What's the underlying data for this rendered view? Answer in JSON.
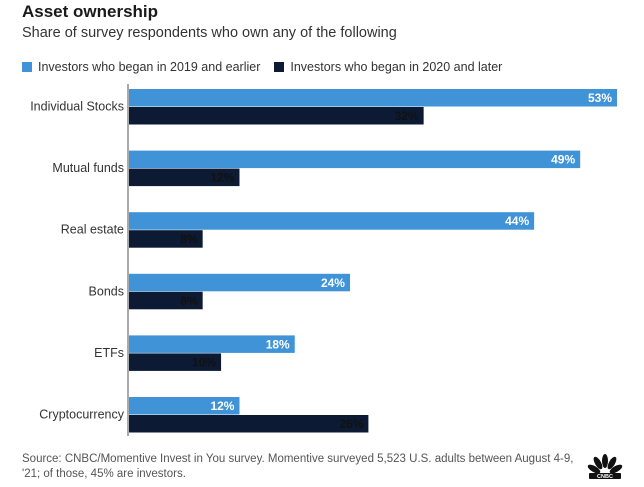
{
  "header": {
    "title": "Asset ownership",
    "subtitle": "Share of survey respondents who own any of the following"
  },
  "source_text": "Source: CNBC/Momentive Invest in You survey. Momentive surveyed 5,523 U.S. adults between August 4-9, '21; of those, 45% are investors.",
  "colors": {
    "series_1": "#3f93d6",
    "series_2": "#0c1a33"
  },
  "logo_icon": "nbc-peacock-icon",
  "chart_data": {
    "type": "bar",
    "orientation": "horizontal",
    "title": "Asset ownership",
    "subtitle": "Share of survey respondents who own any of the following",
    "categories": [
      "Individual Stocks",
      "Mutual funds",
      "Real estate",
      "Bonds",
      "ETFs",
      "Cryptocurrency"
    ],
    "series": [
      {
        "name": "Investors who began in 2019 and earlier",
        "values": [
          53,
          49,
          44,
          24,
          18,
          12
        ],
        "labels": [
          "53%",
          "49%",
          "44%",
          "24%",
          "18%",
          "12%"
        ]
      },
      {
        "name": "Investors who began in 2020 and later",
        "values": [
          32,
          12,
          8,
          8,
          10,
          26
        ],
        "labels": [
          "32%",
          "12%",
          "8%",
          "8%",
          "10%",
          "26%"
        ]
      }
    ],
    "value_unit": "%",
    "xlim": [
      0,
      53
    ],
    "legend_position": "top-left",
    "grid": false
  }
}
